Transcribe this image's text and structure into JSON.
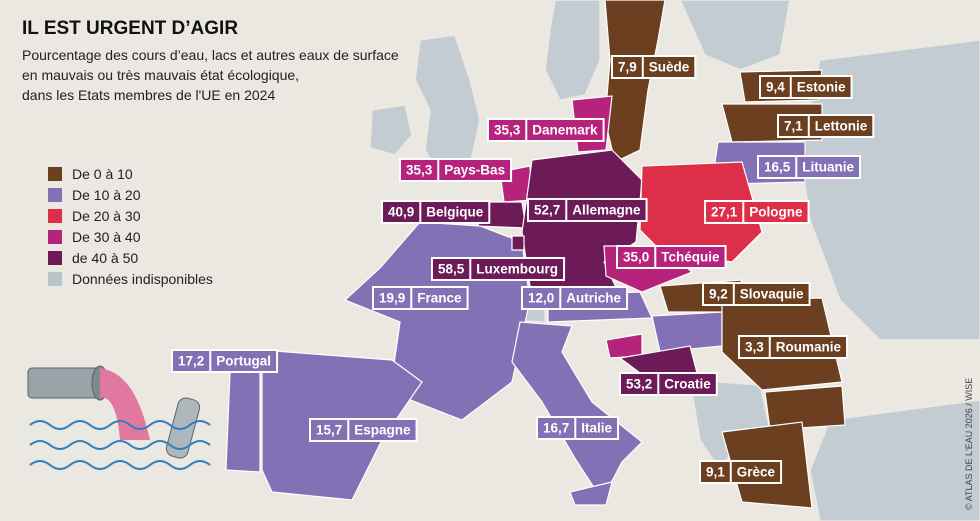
{
  "title": "IL EST URGENT D’AGIR",
  "subtitle": [
    "Pourcentage des cours d’eau, lacs et autres eaux de surface",
    "en mauvais ou très mauvais état écologique,",
    "dans les Etats membres de l'UE en 2024"
  ],
  "legend": [
    {
      "label": "De 0 à 10",
      "color": "#6b3f1f"
    },
    {
      "label": "De 10 à 20",
      "color": "#8272b5"
    },
    {
      "label": "De 20 à 30",
      "color": "#de2f48"
    },
    {
      "label": "De 30 à 40",
      "color": "#b6237c"
    },
    {
      "label": "de 40 à 50",
      "color": "#6c1a58"
    },
    {
      "label": "Données indisponibles",
      "color": "#b9c3ca"
    }
  ],
  "countries": [
    {
      "name": "Suède",
      "value": 7.9,
      "value_label": "7,9",
      "color": "#6b3f1f"
    },
    {
      "name": "Estonie",
      "value": 9.4,
      "value_label": "9,4",
      "color": "#6b3f1f"
    },
    {
      "name": "Lettonie",
      "value": 7.1,
      "value_label": "7,1",
      "color": "#6b3f1f"
    },
    {
      "name": "Lituanie",
      "value": 16.5,
      "value_label": "16,5",
      "color": "#8272b5"
    },
    {
      "name": "Danemark",
      "value": 35.3,
      "value_label": "35,3",
      "color": "#b6237c"
    },
    {
      "name": "Pays-Bas",
      "value": 35.3,
      "value_label": "35,3",
      "color": "#b6237c"
    },
    {
      "name": "Belgique",
      "value": 40.9,
      "value_label": "40,9",
      "color": "#6c1a58"
    },
    {
      "name": "Allemagne",
      "value": 52.7,
      "value_label": "52,7",
      "color": "#6c1a58"
    },
    {
      "name": "Pologne",
      "value": 27.1,
      "value_label": "27,1",
      "color": "#de2f48"
    },
    {
      "name": "Tchéquie",
      "value": 35.0,
      "value_label": "35,0",
      "color": "#b6237c"
    },
    {
      "name": "Luxembourg",
      "value": 58.5,
      "value_label": "58,5",
      "color": "#6c1a58"
    },
    {
      "name": "Slovaquie",
      "value": 9.2,
      "value_label": "9,2",
      "color": "#6b3f1f"
    },
    {
      "name": "France",
      "value": 19.9,
      "value_label": "19,9",
      "color": "#8272b5"
    },
    {
      "name": "Autriche",
      "value": 12.0,
      "value_label": "12,0",
      "color": "#8272b5"
    },
    {
      "name": "Roumanie",
      "value": 3.3,
      "value_label": "3,3",
      "color": "#6b3f1f"
    },
    {
      "name": "Portugal",
      "value": 17.2,
      "value_label": "17,2",
      "color": "#8272b5"
    },
    {
      "name": "Croatie",
      "value": 53.2,
      "value_label": "53,2",
      "color": "#6c1a58"
    },
    {
      "name": "Espagne",
      "value": 15.7,
      "value_label": "15,7",
      "color": "#8272b5"
    },
    {
      "name": "Italie",
      "value": 16.7,
      "value_label": "16,7",
      "color": "#8272b5"
    },
    {
      "name": "Grèce",
      "value": 9.1,
      "value_label": "9,1",
      "color": "#6b3f1f"
    }
  ],
  "credit": "© ATLAS DE L'EAU 2026 / WISE"
}
